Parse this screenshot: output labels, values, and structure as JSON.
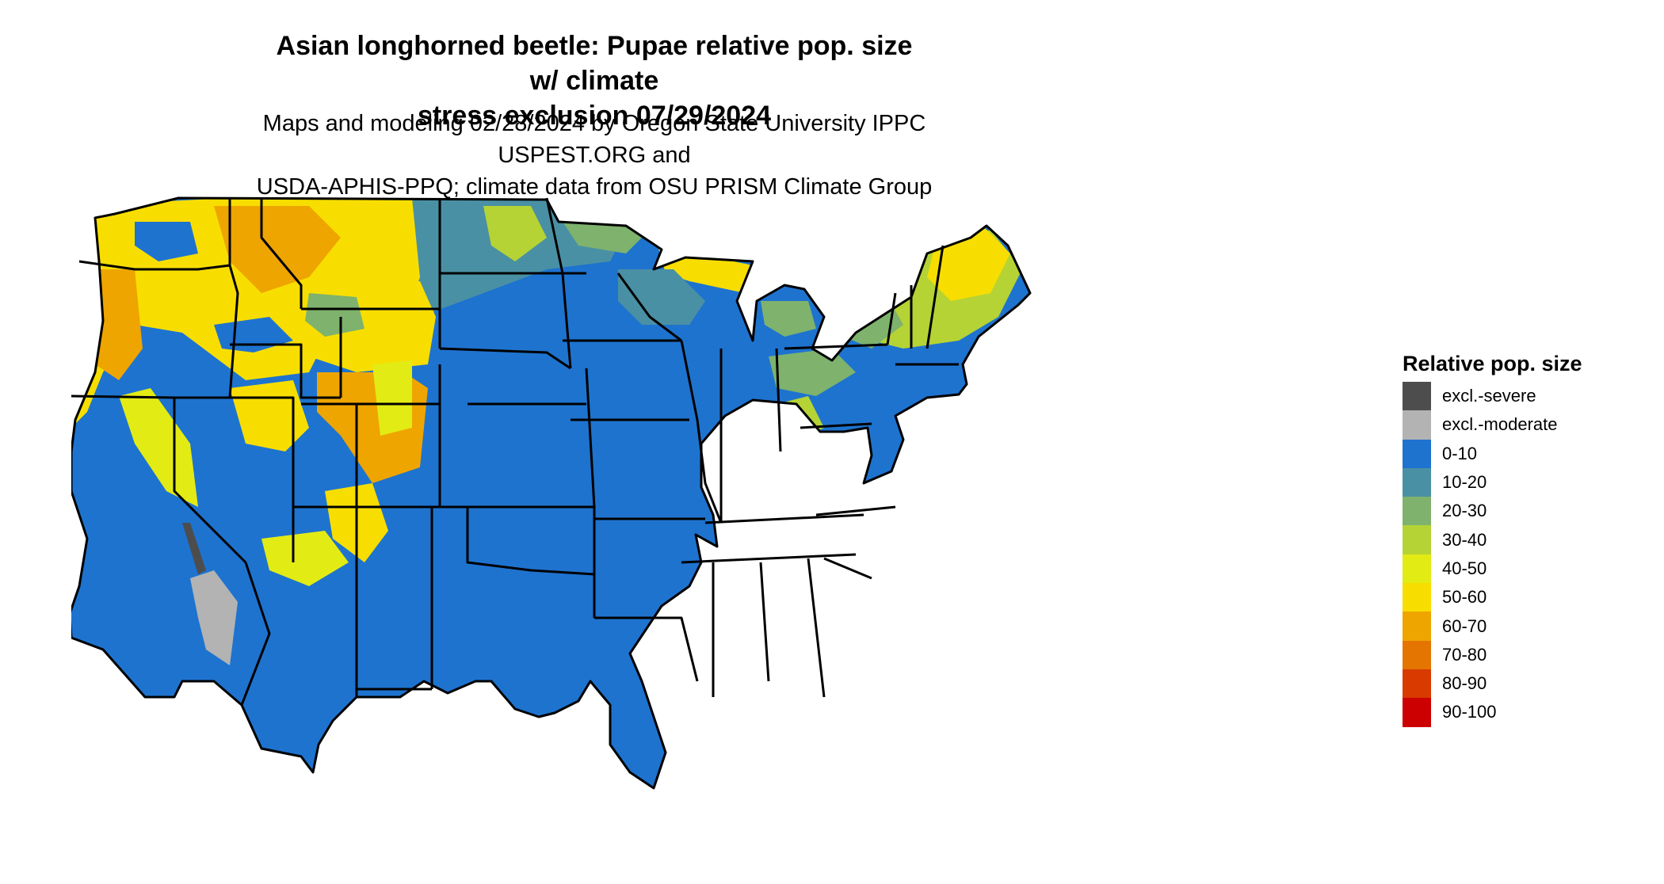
{
  "title": {
    "line1": "Asian longhorned beetle: Pupae relative pop. size w/ climate",
    "line2": "stress exclusion 07/29/2024"
  },
  "subtitle": {
    "line1": "Maps and modeling 02/28/2024 by Oregon State University IPPC USPEST.ORG and",
    "line2": "USDA-APHIS-PPQ; climate data from OSU PRISM Climate Group"
  },
  "legend": {
    "title": "Relative pop. size",
    "items": [
      {
        "label": "excl.-severe",
        "color": "#4d4d4d"
      },
      {
        "label": "excl.-moderate",
        "color": "#b3b3b3"
      },
      {
        "label": "0-10",
        "color": "#1e73cf"
      },
      {
        "label": "10-20",
        "color": "#4a90a4"
      },
      {
        "label": "20-30",
        "color": "#7eb26d"
      },
      {
        "label": "30-40",
        "color": "#b5d334"
      },
      {
        "label": "40-50",
        "color": "#e3eb14"
      },
      {
        "label": "50-60",
        "color": "#f7de00"
      },
      {
        "label": "60-70",
        "color": "#eea500"
      },
      {
        "label": "70-80",
        "color": "#e47500"
      },
      {
        "label": "80-90",
        "color": "#d83a00"
      },
      {
        "label": "90-100",
        "color": "#cc0000"
      }
    ]
  },
  "map": {
    "region": "contiguous-united-states",
    "base_category": "0-10",
    "high_categories_northwest_and_mountains": [
      "50-60",
      "60-70",
      "40-50"
    ],
    "northern_categories": [
      "10-20",
      "20-30",
      "30-40"
    ],
    "excluded_category_southwest": "excl.-moderate"
  }
}
